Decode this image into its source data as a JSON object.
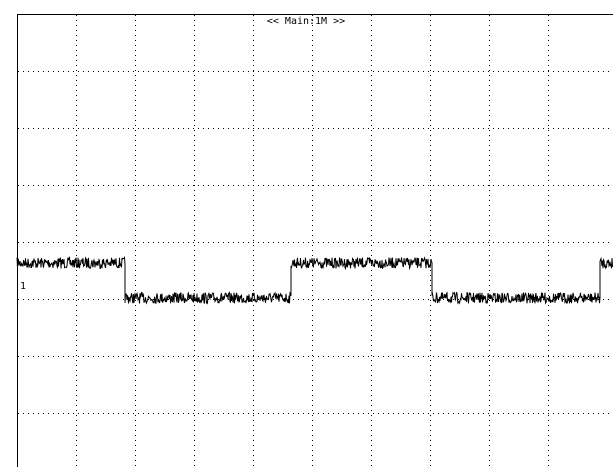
{
  "screen": {
    "timebase_label": "<< Main:1M >>",
    "channel_marker": "1"
  }
}
